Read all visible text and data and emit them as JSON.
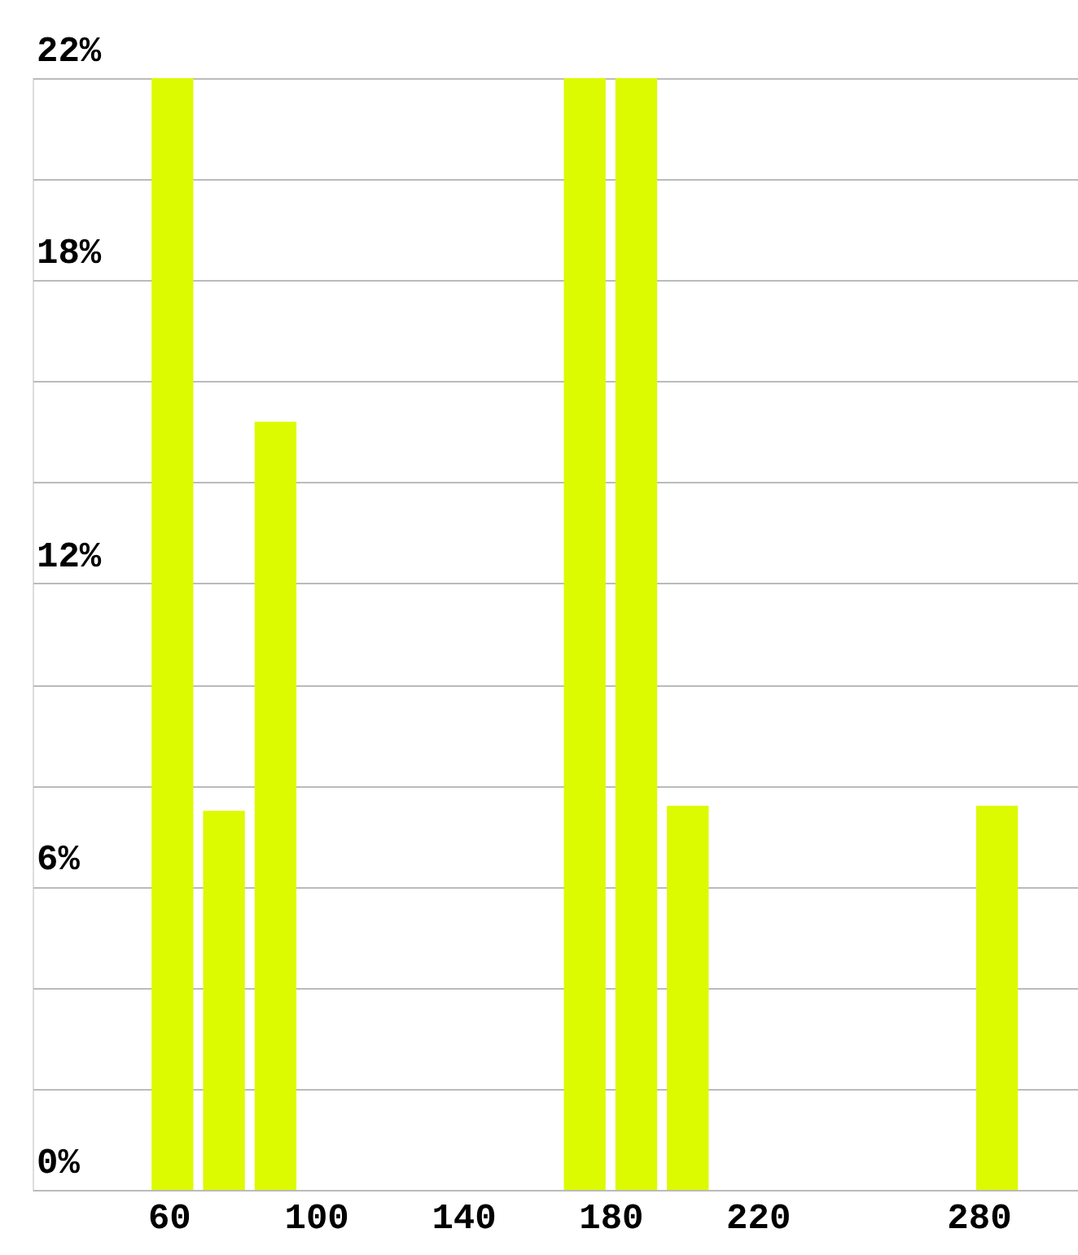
{
  "chart_data": {
    "type": "histogram",
    "bins": [
      54,
      68,
      82,
      96,
      110,
      124,
      138,
      152,
      166,
      180,
      194,
      208,
      222,
      236,
      250,
      264,
      278,
      292
    ],
    "values": [
      22,
      7.5,
      15.2,
      0,
      0,
      0,
      0,
      0,
      22,
      22,
      7.6,
      0,
      0,
      0,
      0,
      0,
      7.6
    ],
    "color": "#dcfa00",
    "xlim": [
      23,
      307
    ],
    "xticks": [
      60,
      100,
      140,
      180,
      220,
      280
    ],
    "ylim": [
      0,
      22
    ],
    "yticks": [
      {
        "value": 0,
        "label": "0%"
      },
      {
        "value": 2,
        "label": null
      },
      {
        "value": 4,
        "label": null
      },
      {
        "value": 6,
        "label": "6%"
      },
      {
        "value": 8,
        "label": null
      },
      {
        "value": 10,
        "label": null
      },
      {
        "value": 12,
        "label": "12%"
      },
      {
        "value": 14,
        "label": null
      },
      {
        "value": 16,
        "label": null
      },
      {
        "value": 18,
        "label": "18%"
      },
      {
        "value": 20,
        "label": null
      },
      {
        "value": 22,
        "label": "22%"
      }
    ],
    "grid": "y"
  }
}
